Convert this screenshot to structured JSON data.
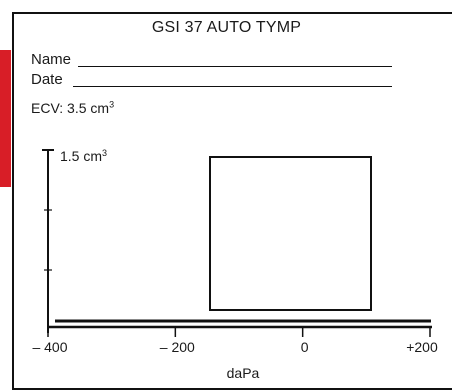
{
  "header": {
    "title": "GSI 37 AUTO TYMP"
  },
  "fields": {
    "name_label": "Name",
    "date_label": "Date"
  },
  "ecv": {
    "label": "ECV: 3.5 cm",
    "superscript": "3"
  },
  "chart_data": {
    "type": "line",
    "y_top_label": "1.5 cm",
    "y_top_superscript": "3",
    "ylim": [
      0,
      1.5
    ],
    "xlim": [
      -400,
      200
    ],
    "x_ticks": [
      -400,
      -200,
      0,
      200
    ],
    "x_tick_labels": [
      "– 400",
      "– 200",
      "0",
      "+200"
    ],
    "xlabel": "daPa",
    "grid": false,
    "series": [],
    "accent_color": "#d81e27"
  }
}
